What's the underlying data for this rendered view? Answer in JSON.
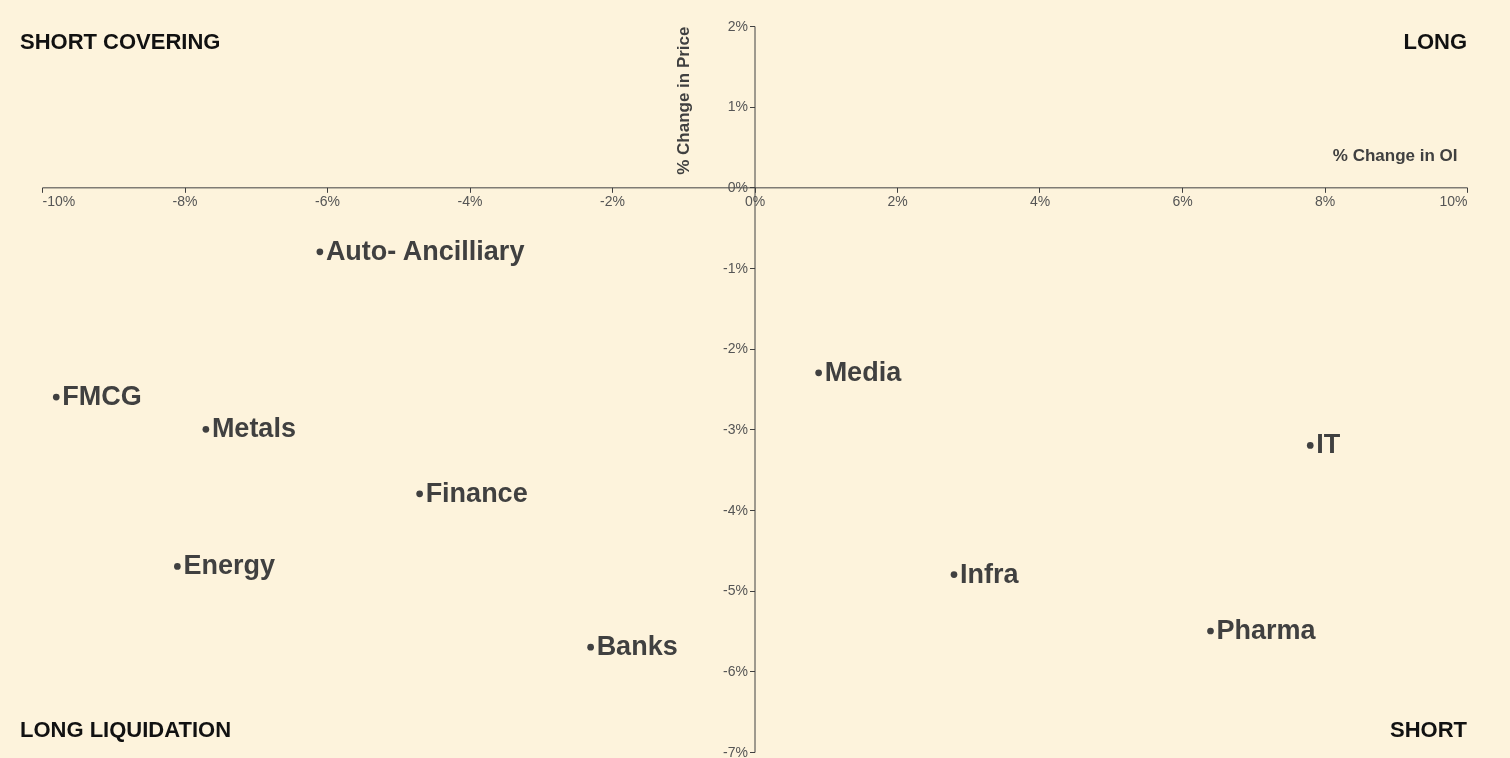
{
  "chart_data": {
    "type": "scatter",
    "xlabel": "% Change in OI",
    "ylabel": "% Change in Price",
    "xlim": [
      -10,
      10
    ],
    "ylim": [
      -7,
      2
    ],
    "xticks": [
      {
        "value": -10,
        "label": "-10%"
      },
      {
        "value": -8,
        "label": "-8%"
      },
      {
        "value": -6,
        "label": "-6%"
      },
      {
        "value": -4,
        "label": "-4%"
      },
      {
        "value": -2,
        "label": "-2%"
      },
      {
        "value": 0,
        "label": "0%"
      },
      {
        "value": 2,
        "label": "2%"
      },
      {
        "value": 4,
        "label": "4%"
      },
      {
        "value": 6,
        "label": "6%"
      },
      {
        "value": 8,
        "label": "8%"
      },
      {
        "value": 10,
        "label": "10%"
      }
    ],
    "yticks": [
      {
        "value": -7,
        "label": "-7%"
      },
      {
        "value": -6,
        "label": "-6%"
      },
      {
        "value": -5,
        "label": "-5%"
      },
      {
        "value": -4,
        "label": "-4%"
      },
      {
        "value": -3,
        "label": "-3%"
      },
      {
        "value": -2,
        "label": "-2%"
      },
      {
        "value": -1,
        "label": "-1%"
      },
      {
        "value": 0,
        "label": "0%"
      },
      {
        "value": 1,
        "label": "1%"
      },
      {
        "value": 2,
        "label": "2%"
      }
    ],
    "grid": false,
    "marker": "circle",
    "series": [
      {
        "name": "Auto- Ancilliary",
        "color": "#404040",
        "x": [
          -6.1
        ],
        "values": [
          -0.8
        ]
      },
      {
        "name": "FMCG",
        "color": "#404040",
        "x": [
          -9.8
        ],
        "values": [
          -2.6
        ]
      },
      {
        "name": "Metals",
        "color": "#404040",
        "x": [
          -7.7
        ],
        "values": [
          -3.0
        ]
      },
      {
        "name": "Finance",
        "color": "#404040",
        "x": [
          -4.7
        ],
        "values": [
          -3.8
        ]
      },
      {
        "name": "Energy",
        "color": "#404040",
        "x": [
          -8.1
        ],
        "values": [
          -4.7
        ]
      },
      {
        "name": "Banks",
        "color": "#404040",
        "x": [
          -2.3
        ],
        "values": [
          -5.7
        ]
      },
      {
        "name": "Media",
        "color": "#404040",
        "x": [
          0.9
        ],
        "values": [
          -2.3
        ]
      },
      {
        "name": "IT",
        "color": "#404040",
        "x": [
          7.8
        ],
        "values": [
          -3.2
        ]
      },
      {
        "name": "Infra",
        "color": "#404040",
        "x": [
          2.8
        ],
        "values": [
          -4.8
        ]
      },
      {
        "name": "Pharma",
        "color": "#404040",
        "x": [
          6.4
        ],
        "values": [
          -5.5
        ]
      }
    ],
    "annotations": [
      "SHORT COVERING",
      "LONG",
      "LONG LIQUIDATION",
      "SHORT"
    ]
  }
}
